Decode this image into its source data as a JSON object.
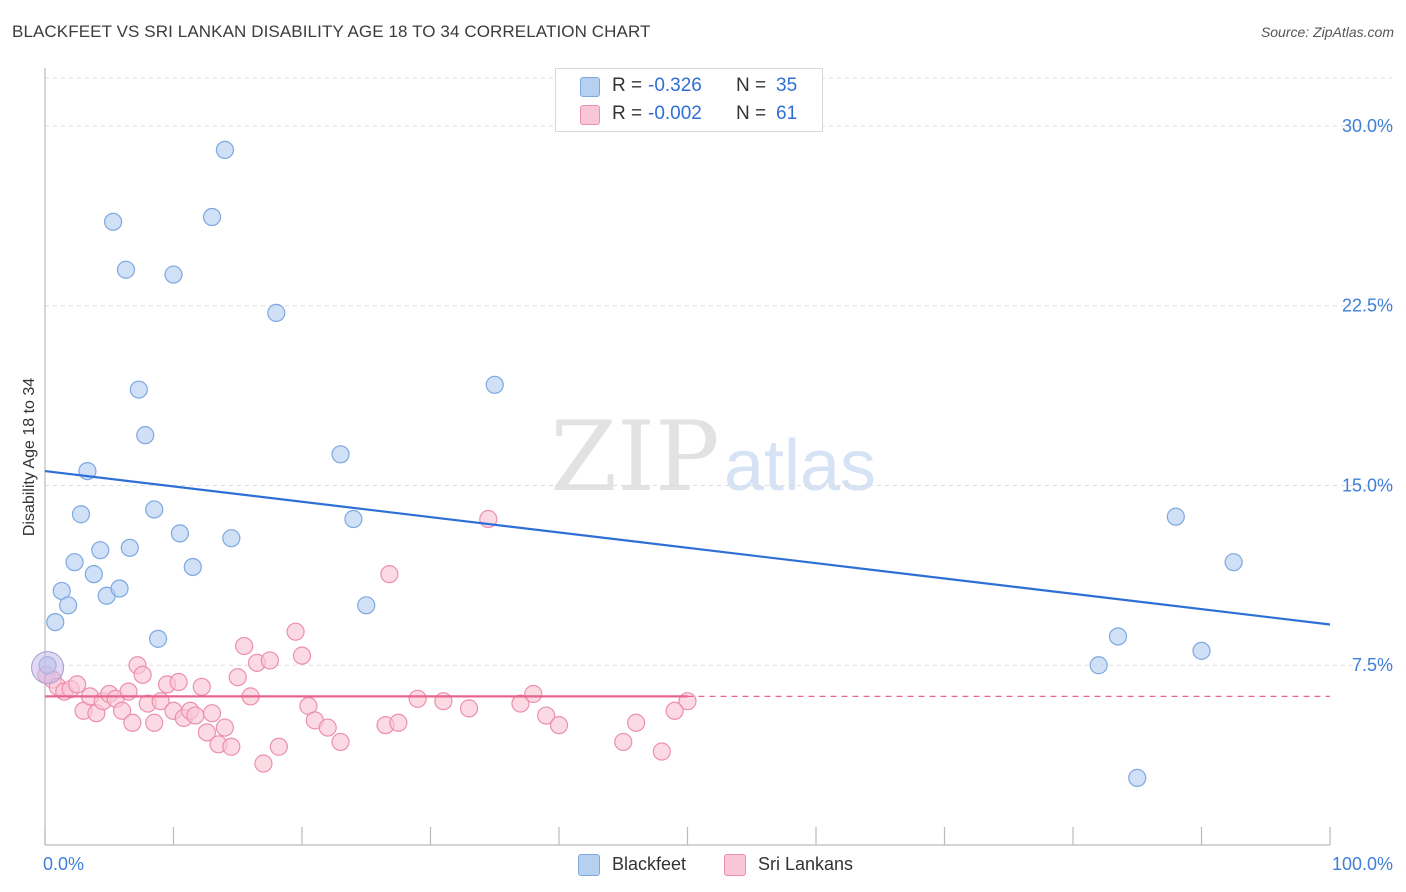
{
  "title": "BLACKFEET VS SRI LANKAN DISABILITY AGE 18 TO 34 CORRELATION CHART",
  "source": "Source: ZipAtlas.com",
  "watermark": {
    "zip": "ZIP",
    "atlas": "atlas"
  },
  "legend_top": [
    {
      "r_label": "R =",
      "r_value": "-0.326",
      "n_label": "N =",
      "n_value": "35"
    },
    {
      "r_label": "R =",
      "r_value": "-0.002",
      "n_label": "N =",
      "n_value": "61"
    }
  ],
  "colors": {
    "blackfeet_fill": "#b6d0f2",
    "blackfeet_stroke": "#7fa8e0",
    "blackfeet_line": "#2e6fd6",
    "srilankan_fill": "#f9c6d6",
    "srilankan_stroke": "#ec8fb0",
    "srilankan_line": "#e8648c",
    "tick_label": "#3f7fd8"
  },
  "chart_data": {
    "type": "scatter",
    "title": "BLACKFEET VS SRI LANKAN DISABILITY AGE 18 TO 34 CORRELATION CHART",
    "xlabel": "",
    "ylabel": "Disability Age 18 to 34",
    "xlim": [
      0,
      100
    ],
    "ylim": [
      0,
      32
    ],
    "x_tick_labels": [
      "0.0%",
      "100.0%"
    ],
    "y_ticks": [
      7.5,
      15.0,
      22.5,
      30.0
    ],
    "y_tick_labels": [
      "7.5%",
      "15.0%",
      "22.5%",
      "30.0%"
    ],
    "grid": true,
    "legend_position": "bottom-center",
    "series": [
      {
        "name": "Blackfeet",
        "r": -0.326,
        "n": 35,
        "trend": {
          "x": [
            0,
            100
          ],
          "y": [
            15.6,
            9.2
          ],
          "dashed_from": null
        },
        "points": [
          [
            0.2,
            7.5
          ],
          [
            0.8,
            9.3
          ],
          [
            1.3,
            10.6
          ],
          [
            1.8,
            10.0
          ],
          [
            2.3,
            11.8
          ],
          [
            2.8,
            13.8
          ],
          [
            3.3,
            15.6
          ],
          [
            3.8,
            11.3
          ],
          [
            4.3,
            12.3
          ],
          [
            4.8,
            10.4
          ],
          [
            5.3,
            26.0
          ],
          [
            5.8,
            10.7
          ],
          [
            6.3,
            24.0
          ],
          [
            6.6,
            12.4
          ],
          [
            7.3,
            19.0
          ],
          [
            7.8,
            17.1
          ],
          [
            8.5,
            14.0
          ],
          [
            8.8,
            8.6
          ],
          [
            10.0,
            23.8
          ],
          [
            10.5,
            13.0
          ],
          [
            11.5,
            11.6
          ],
          [
            13.0,
            26.2
          ],
          [
            14.0,
            29.0
          ],
          [
            14.5,
            12.8
          ],
          [
            18.0,
            22.2
          ],
          [
            23.0,
            16.3
          ],
          [
            24.0,
            13.6
          ],
          [
            25.0,
            10.0
          ],
          [
            35.0,
            19.2
          ],
          [
            82.0,
            7.5
          ],
          [
            83.5,
            8.7
          ],
          [
            85.0,
            2.8
          ],
          [
            88.0,
            13.7
          ],
          [
            90.0,
            8.1
          ],
          [
            92.5,
            11.8
          ]
        ]
      },
      {
        "name": "Sri Lankans",
        "r": -0.002,
        "n": 61,
        "trend": {
          "x": [
            0,
            100
          ],
          "y": [
            6.2,
            6.2
          ],
          "dashed_from": 50
        },
        "points": [
          [
            0.1,
            7.1
          ],
          [
            0.6,
            6.9
          ],
          [
            1.0,
            6.6
          ],
          [
            1.5,
            6.4
          ],
          [
            2.0,
            6.5
          ],
          [
            2.5,
            6.7
          ],
          [
            3.0,
            5.6
          ],
          [
            3.5,
            6.2
          ],
          [
            4.0,
            5.5
          ],
          [
            4.5,
            6.0
          ],
          [
            5.0,
            6.3
          ],
          [
            5.5,
            6.1
          ],
          [
            6.0,
            5.6
          ],
          [
            6.5,
            6.4
          ],
          [
            6.8,
            5.1
          ],
          [
            7.2,
            7.5
          ],
          [
            7.6,
            7.1
          ],
          [
            8.0,
            5.9
          ],
          [
            8.5,
            5.1
          ],
          [
            9.0,
            6.0
          ],
          [
            9.5,
            6.7
          ],
          [
            10.0,
            5.6
          ],
          [
            10.4,
            6.8
          ],
          [
            10.8,
            5.3
          ],
          [
            11.3,
            5.6
          ],
          [
            11.7,
            5.4
          ],
          [
            12.2,
            6.6
          ],
          [
            12.6,
            4.7
          ],
          [
            13.0,
            5.5
          ],
          [
            13.5,
            4.2
          ],
          [
            14.0,
            4.9
          ],
          [
            14.5,
            4.1
          ],
          [
            15.0,
            7.0
          ],
          [
            15.5,
            8.3
          ],
          [
            16.0,
            6.2
          ],
          [
            16.5,
            7.6
          ],
          [
            17.0,
            3.4
          ],
          [
            17.5,
            7.7
          ],
          [
            18.2,
            4.1
          ],
          [
            19.5,
            8.9
          ],
          [
            20.0,
            7.9
          ],
          [
            20.5,
            5.8
          ],
          [
            21.0,
            5.2
          ],
          [
            22.0,
            4.9
          ],
          [
            23.0,
            4.3
          ],
          [
            26.5,
            5.0
          ],
          [
            26.8,
            11.3
          ],
          [
            27.5,
            5.1
          ],
          [
            29.0,
            6.1
          ],
          [
            31.0,
            6.0
          ],
          [
            33.0,
            5.7
          ],
          [
            34.5,
            13.6
          ],
          [
            37.0,
            5.9
          ],
          [
            38.0,
            6.3
          ],
          [
            39.0,
            5.4
          ],
          [
            40.0,
            5.0
          ],
          [
            45.0,
            4.3
          ],
          [
            46.0,
            5.1
          ],
          [
            48.0,
            3.9
          ],
          [
            50.0,
            6.0
          ],
          [
            49.0,
            5.6
          ]
        ]
      }
    ]
  }
}
